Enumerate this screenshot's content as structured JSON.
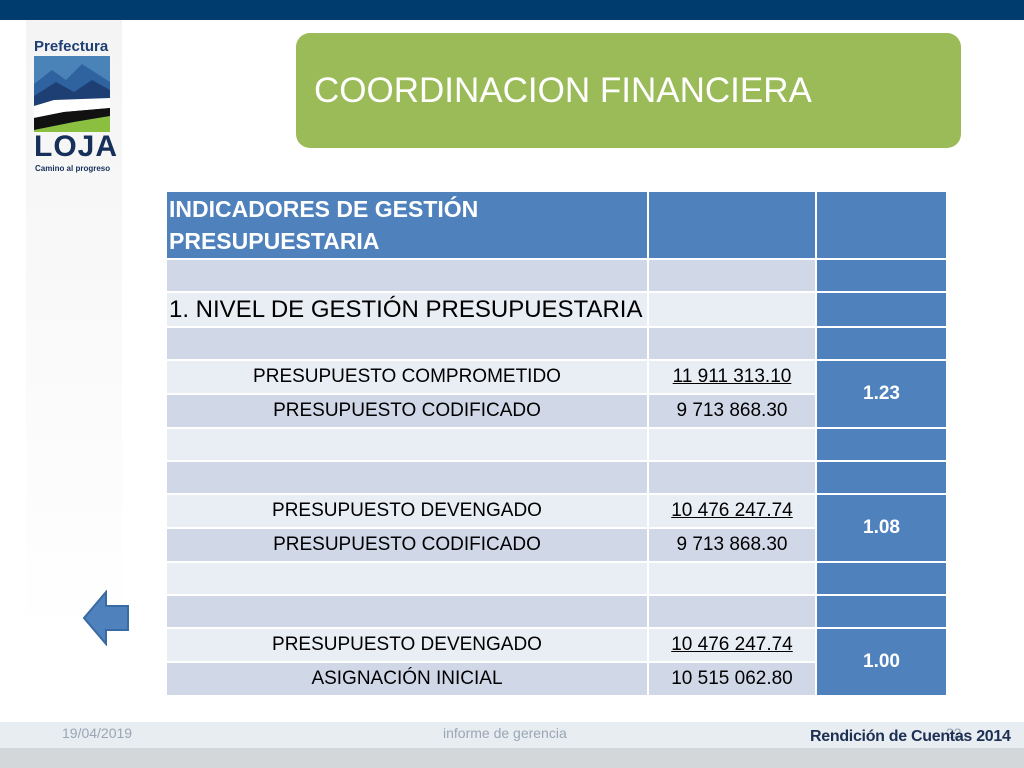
{
  "logo": {
    "title": "Prefectura",
    "name": "LOJA",
    "tagline": "Camino al progreso"
  },
  "header": {
    "title": "COORDINACION FINANCIERA"
  },
  "table": {
    "heading": "INDICADORES DE GESTIÓN PRESUPUESTARIA",
    "section_title": "1. NIVEL DE GESTIÓN PRESUPUESTARIA",
    "groups": [
      {
        "ratio": "1.23",
        "rows": [
          {
            "label": "PRESUPUESTO COMPROMETIDO",
            "value": "11 911 313.10"
          },
          {
            "label": "PRESUPUESTO CODIFICADO",
            "value": "9 713 868.30"
          }
        ]
      },
      {
        "ratio": "1.08",
        "rows": [
          {
            "label": "PRESUPUESTO DEVENGADO",
            "value": "10 476 247.74"
          },
          {
            "label": "PRESUPUESTO CODIFICADO",
            "value": "9 713 868.30"
          }
        ]
      },
      {
        "ratio": "1.00",
        "rows": [
          {
            "label": "PRESUPUESTO DEVENGADO",
            "value": "10 476 247.74"
          },
          {
            "label": "ASIGNACIÓN INICIAL",
            "value": "10 515 062.80"
          }
        ]
      }
    ]
  },
  "nav": {
    "back_icon": "left-arrow-icon",
    "arrow_color": "#4f81bd"
  },
  "footer": {
    "date": "19/04/2019",
    "center": "informe de gerencia",
    "page": "22",
    "brand": "Rendición de Cuentas",
    "brand_year": "2014"
  },
  "colors": {
    "accent": "#9bbb59",
    "table_header": "#4f81bd",
    "row_dark": "#d0d8e8",
    "row_light": "#e9edf4",
    "top_bar": "#003c6e"
  }
}
